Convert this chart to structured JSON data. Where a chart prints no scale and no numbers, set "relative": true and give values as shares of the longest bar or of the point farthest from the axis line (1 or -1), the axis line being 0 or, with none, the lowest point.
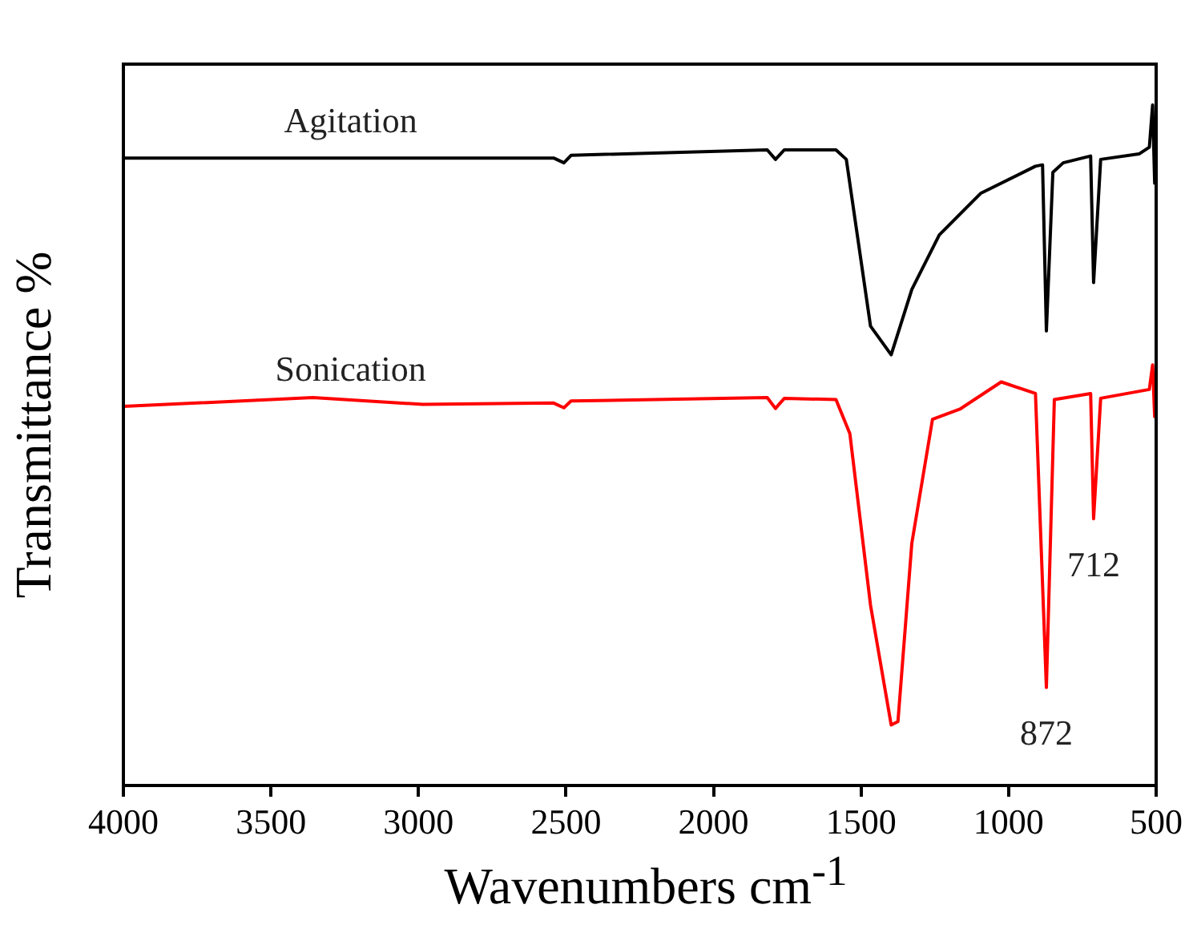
{
  "chart_data": {
    "type": "line",
    "relative": true,
    "xlabel": "Wavenumbers cm$^{-1}$",
    "ylabel": "Transmittance %",
    "xlim": [
      4000,
      500
    ],
    "xticks": [
      4000,
      3500,
      3000,
      2500,
      2000,
      1500,
      1000,
      500
    ],
    "grid": false,
    "legend": false,
    "marker": "none",
    "line_style": "solid",
    "series": [
      {
        "name": "Agitation",
        "color": "#000000",
        "x": [
          4000,
          2542,
          2507,
          2483,
          1818,
          1790,
          1760,
          1585,
          1550,
          1468,
          1398,
          1328,
          1235,
          1095,
          909,
          885,
          872,
          850,
          815,
          722,
          712,
          688,
          558,
          523,
          512,
          505,
          500
        ],
        "values": [
          0.922,
          0.922,
          0.915,
          0.926,
          0.934,
          0.92,
          0.934,
          0.934,
          0.92,
          0.675,
          0.633,
          0.729,
          0.809,
          0.87,
          0.91,
          0.912,
          0.668,
          0.901,
          0.915,
          0.925,
          0.739,
          0.92,
          0.928,
          0.938,
          1.0,
          0.885,
          0.928
        ]
      },
      {
        "name": "Sonication",
        "color": "#ff0000",
        "x": [
          4000,
          3358,
          2985,
          2542,
          2507,
          2483,
          1818,
          1790,
          1760,
          1585,
          1538,
          1468,
          1398,
          1375,
          1328,
          1258,
          1165,
          1025,
          909,
          872,
          845,
          722,
          712,
          688,
          523,
          512,
          505,
          500
        ],
        "values": [
          0.557,
          0.57,
          0.56,
          0.562,
          0.555,
          0.565,
          0.57,
          0.554,
          0.569,
          0.567,
          0.517,
          0.265,
          0.089,
          0.094,
          0.356,
          0.538,
          0.553,
          0.593,
          0.576,
          0.144,
          0.567,
          0.576,
          0.392,
          0.569,
          0.582,
          0.618,
          0.542,
          0.582
        ]
      }
    ],
    "annotations": [
      {
        "text": "712",
        "x": 712,
        "y": 0.392
      },
      {
        "text": "872",
        "x": 872,
        "y": 0.144
      }
    ]
  }
}
